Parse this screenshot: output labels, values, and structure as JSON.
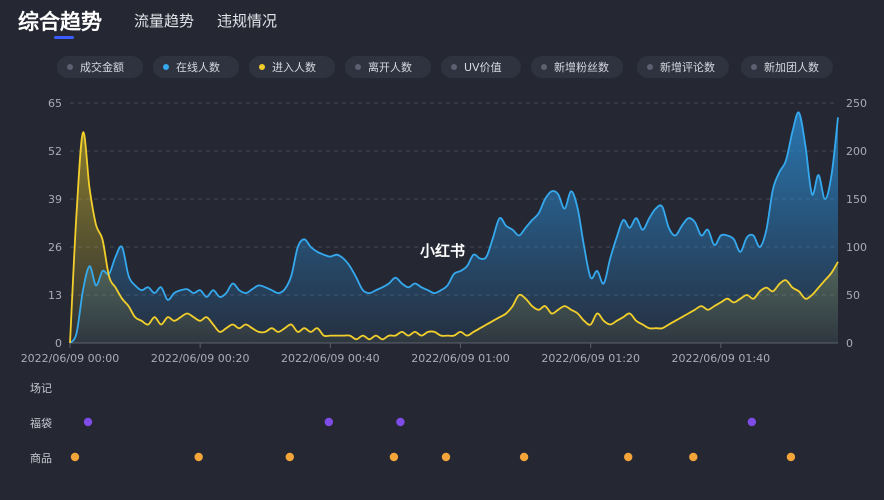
{
  "tabs": [
    {
      "label": "综合趋势",
      "active": true
    },
    {
      "label": "流量趋势",
      "active": false
    },
    {
      "label": "违规情况",
      "active": false
    }
  ],
  "legend": [
    {
      "label": "成交金额",
      "color": "#5c6070"
    },
    {
      "label": "在线人数",
      "color": "#35a9ee"
    },
    {
      "label": "进入人数",
      "color": "#f2cf2b"
    },
    {
      "label": "离开人数",
      "color": "#5c6070"
    },
    {
      "label": "UV价值",
      "color": "#5c6070"
    },
    {
      "label": "新增粉丝数",
      "color": "#5c6070"
    },
    {
      "label": "新增评论数",
      "color": "#5c6070"
    },
    {
      "label": "新加团人数",
      "color": "#5c6070"
    }
  ],
  "watermark": "小红书",
  "chart_data": {
    "type": "area",
    "x_ticks": [
      "2022/06/09 00:00",
      "2022/06/09 00:20",
      "2022/06/09 00:40",
      "2022/06/09 01:00",
      "2022/06/09 01:20",
      "2022/06/09 01:40"
    ],
    "x_range": [
      0,
      118
    ],
    "y_left": {
      "ticks": [
        0,
        13,
        26,
        39,
        52,
        65
      ],
      "range": [
        0,
        65
      ]
    },
    "y_right": {
      "ticks": [
        0,
        50,
        100,
        150,
        200,
        250
      ],
      "range": [
        0,
        250
      ]
    },
    "grid": true,
    "series": [
      {
        "name": "在线人数",
        "axis": "right",
        "color": "#35a9ee",
        "points": [
          [
            0,
            0
          ],
          [
            1,
            10
          ],
          [
            2,
            55
          ],
          [
            3,
            80
          ],
          [
            4,
            60
          ],
          [
            5,
            75
          ],
          [
            6,
            72
          ],
          [
            7,
            90
          ],
          [
            8,
            100
          ],
          [
            9,
            70
          ],
          [
            10,
            60
          ],
          [
            11,
            55
          ],
          [
            12,
            58
          ],
          [
            13,
            52
          ],
          [
            14,
            58
          ],
          [
            15,
            45
          ],
          [
            16,
            52
          ],
          [
            17,
            55
          ],
          [
            18,
            56
          ],
          [
            19,
            52
          ],
          [
            20,
            55
          ],
          [
            21,
            48
          ],
          [
            22,
            55
          ],
          [
            23,
            48
          ],
          [
            24,
            52
          ],
          [
            25,
            62
          ],
          [
            26,
            55
          ],
          [
            27,
            52
          ],
          [
            28,
            56
          ],
          [
            29,
            60
          ],
          [
            30,
            58
          ],
          [
            31,
            55
          ],
          [
            32,
            52
          ],
          [
            33,
            56
          ],
          [
            34,
            70
          ],
          [
            35,
            100
          ],
          [
            36,
            108
          ],
          [
            37,
            100
          ],
          [
            38,
            95
          ],
          [
            39,
            92
          ],
          [
            40,
            90
          ],
          [
            41,
            92
          ],
          [
            42,
            88
          ],
          [
            43,
            80
          ],
          [
            44,
            68
          ],
          [
            45,
            55
          ],
          [
            46,
            52
          ],
          [
            47,
            55
          ],
          [
            48,
            58
          ],
          [
            49,
            62
          ],
          [
            50,
            68
          ],
          [
            51,
            62
          ],
          [
            52,
            58
          ],
          [
            53,
            62
          ],
          [
            54,
            58
          ],
          [
            55,
            55
          ],
          [
            56,
            52
          ],
          [
            57,
            55
          ],
          [
            58,
            60
          ],
          [
            59,
            72
          ],
          [
            60,
            75
          ],
          [
            61,
            80
          ],
          [
            62,
            92
          ],
          [
            63,
            88
          ],
          [
            64,
            90
          ],
          [
            65,
            110
          ],
          [
            66,
            130
          ],
          [
            67,
            122
          ],
          [
            68,
            118
          ],
          [
            69,
            112
          ],
          [
            70,
            120
          ],
          [
            71,
            128
          ],
          [
            72,
            135
          ],
          [
            73,
            150
          ],
          [
            74,
            158
          ],
          [
            75,
            155
          ],
          [
            76,
            140
          ],
          [
            77,
            158
          ],
          [
            78,
            140
          ],
          [
            79,
            100
          ],
          [
            80,
            68
          ],
          [
            81,
            75
          ],
          [
            82,
            62
          ],
          [
            83,
            88
          ],
          [
            84,
            110
          ],
          [
            85,
            128
          ],
          [
            86,
            120
          ],
          [
            87,
            130
          ],
          [
            88,
            118
          ],
          [
            89,
            130
          ],
          [
            90,
            140
          ],
          [
            91,
            142
          ],
          [
            92,
            120
          ],
          [
            93,
            112
          ],
          [
            94,
            122
          ],
          [
            95,
            130
          ],
          [
            96,
            126
          ],
          [
            97,
            112
          ],
          [
            98,
            118
          ],
          [
            99,
            102
          ],
          [
            100,
            112
          ],
          [
            101,
            112
          ],
          [
            102,
            108
          ],
          [
            103,
            95
          ],
          [
            104,
            110
          ],
          [
            105,
            112
          ],
          [
            106,
            100
          ],
          [
            107,
            118
          ],
          [
            108,
            160
          ],
          [
            109,
            178
          ],
          [
            110,
            190
          ],
          [
            111,
            220
          ],
          [
            112,
            240
          ],
          [
            113,
            205
          ],
          [
            114,
            155
          ],
          [
            115,
            175
          ],
          [
            116,
            150
          ],
          [
            117,
            175
          ],
          [
            118,
            235
          ]
        ]
      },
      {
        "name": "进入人数",
        "axis": "left",
        "color": "#f2cf2b",
        "points": [
          [
            0,
            0
          ],
          [
            1,
            35
          ],
          [
            2,
            57
          ],
          [
            3,
            42
          ],
          [
            4,
            32
          ],
          [
            5,
            28
          ],
          [
            6,
            18
          ],
          [
            7,
            15
          ],
          [
            8,
            12
          ],
          [
            9,
            10
          ],
          [
            10,
            7
          ],
          [
            11,
            6
          ],
          [
            12,
            5
          ],
          [
            13,
            7
          ],
          [
            14,
            5
          ],
          [
            15,
            7
          ],
          [
            16,
            6
          ],
          [
            17,
            7
          ],
          [
            18,
            8
          ],
          [
            19,
            7
          ],
          [
            20,
            6
          ],
          [
            21,
            7
          ],
          [
            22,
            5
          ],
          [
            23,
            3
          ],
          [
            24,
            4
          ],
          [
            25,
            5
          ],
          [
            26,
            4
          ],
          [
            27,
            5
          ],
          [
            28,
            4
          ],
          [
            29,
            3
          ],
          [
            30,
            3
          ],
          [
            31,
            4
          ],
          [
            32,
            3
          ],
          [
            33,
            4
          ],
          [
            34,
            5
          ],
          [
            35,
            3
          ],
          [
            36,
            4
          ],
          [
            37,
            3
          ],
          [
            38,
            4
          ],
          [
            39,
            2
          ],
          [
            40,
            2
          ],
          [
            41,
            2
          ],
          [
            42,
            2
          ],
          [
            43,
            2
          ],
          [
            44,
            1
          ],
          [
            45,
            2
          ],
          [
            46,
            1
          ],
          [
            47,
            2
          ],
          [
            48,
            1
          ],
          [
            49,
            2
          ],
          [
            50,
            2
          ],
          [
            51,
            3
          ],
          [
            52,
            2
          ],
          [
            53,
            3
          ],
          [
            54,
            2
          ],
          [
            55,
            3
          ],
          [
            56,
            3
          ],
          [
            57,
            2
          ],
          [
            58,
            2
          ],
          [
            59,
            2
          ],
          [
            60,
            3
          ],
          [
            61,
            2
          ],
          [
            62,
            3
          ],
          [
            63,
            4
          ],
          [
            64,
            5
          ],
          [
            65,
            6
          ],
          [
            66,
            7
          ],
          [
            67,
            8
          ],
          [
            68,
            10
          ],
          [
            69,
            13
          ],
          [
            70,
            12
          ],
          [
            71,
            10
          ],
          [
            72,
            9
          ],
          [
            73,
            10
          ],
          [
            74,
            8
          ],
          [
            75,
            9
          ],
          [
            76,
            10
          ],
          [
            77,
            9
          ],
          [
            78,
            8
          ],
          [
            79,
            6
          ],
          [
            80,
            5
          ],
          [
            81,
            8
          ],
          [
            82,
            6
          ],
          [
            83,
            5
          ],
          [
            84,
            6
          ],
          [
            85,
            7
          ],
          [
            86,
            8
          ],
          [
            87,
            6
          ],
          [
            88,
            5
          ],
          [
            89,
            4
          ],
          [
            90,
            4
          ],
          [
            91,
            4
          ],
          [
            92,
            5
          ],
          [
            93,
            6
          ],
          [
            94,
            7
          ],
          [
            95,
            8
          ],
          [
            96,
            9
          ],
          [
            97,
            10
          ],
          [
            98,
            9
          ],
          [
            99,
            10
          ],
          [
            100,
            11
          ],
          [
            101,
            12
          ],
          [
            102,
            11
          ],
          [
            103,
            12
          ],
          [
            104,
            13
          ],
          [
            105,
            12
          ],
          [
            106,
            14
          ],
          [
            107,
            15
          ],
          [
            108,
            14
          ],
          [
            109,
            16
          ],
          [
            110,
            17
          ],
          [
            111,
            15
          ],
          [
            112,
            14
          ],
          [
            113,
            12
          ],
          [
            114,
            13
          ],
          [
            115,
            15
          ],
          [
            116,
            17
          ],
          [
            117,
            19
          ],
          [
            118,
            22
          ]
        ]
      }
    ],
    "event_rows": [
      {
        "label": "场记",
        "color": "",
        "x": []
      },
      {
        "label": "福袋",
        "color": "#7e4ce6",
        "x": [
          2,
          39,
          50,
          104
        ]
      },
      {
        "label": "商品",
        "color": "#f3a53a",
        "x": [
          0,
          19,
          33,
          49,
          57,
          69,
          85,
          95,
          110
        ]
      }
    ]
  }
}
